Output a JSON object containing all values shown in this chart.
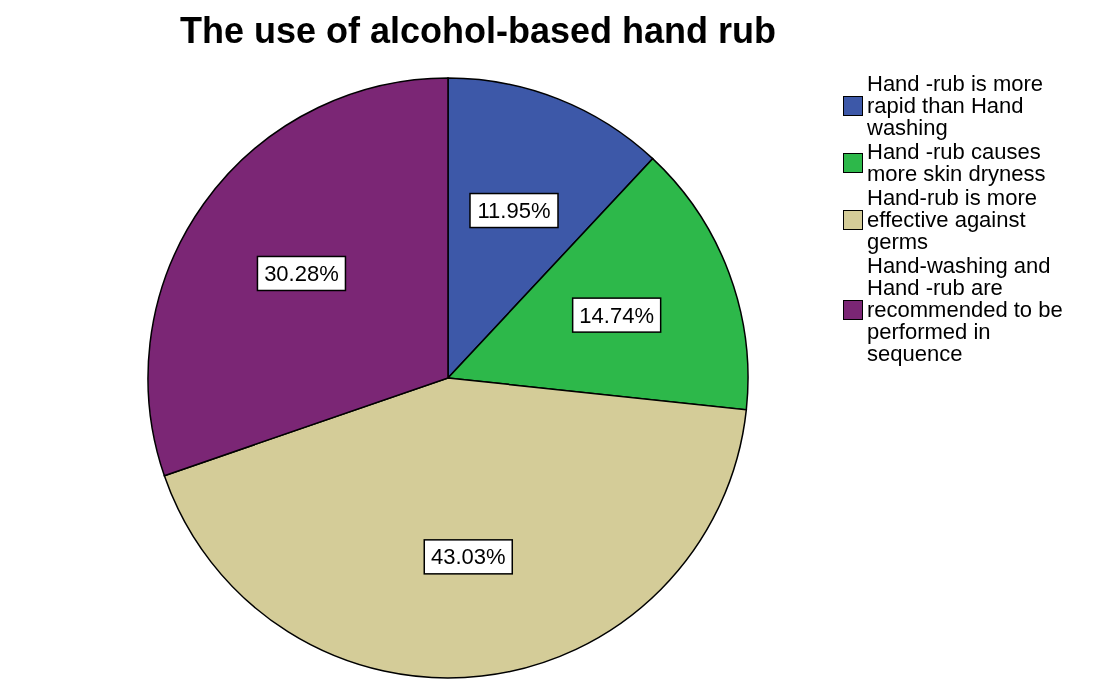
{
  "chart_data": {
    "type": "pie",
    "title": "The use of  alcohol-based hand rub",
    "categories": [
      "Hand -rub is more rapid than Hand washing",
      "Hand -rub causes more skin dryness",
      "Hand-rub is more effective against germs",
      "Hand-washing and Hand -rub are recommended to be performed in sequence"
    ],
    "values": [
      11.95,
      14.74,
      43.03,
      30.28
    ],
    "colors": [
      "#3d58a8",
      "#2db84a",
      "#d4cc98",
      "#7b2675"
    ],
    "value_labels": [
      "11.95%",
      "14.74%",
      "43.03%",
      "30.28%"
    ],
    "legend": "right"
  }
}
